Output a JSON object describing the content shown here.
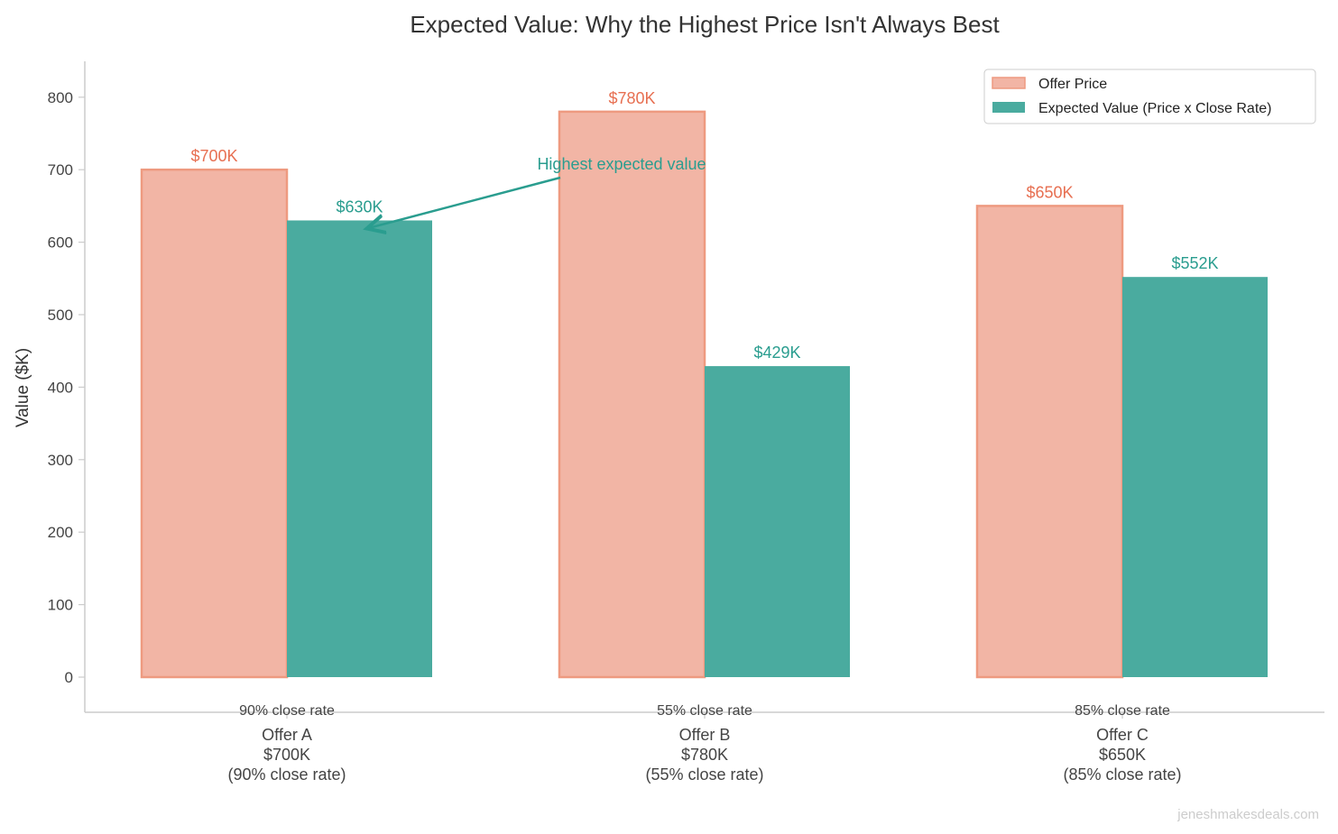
{
  "chart_data": {
    "type": "bar",
    "title": "Expected Value: Why the Highest Price Isn't Always Best",
    "xlabel": "",
    "ylabel": "Value ($K)",
    "ylim": [
      -50,
      850
    ],
    "yticks": [
      0,
      100,
      200,
      300,
      400,
      500,
      600,
      700,
      800
    ],
    "grid": false,
    "legend_position": "top-right",
    "categories": [
      [
        "Offer A",
        "$700K",
        "(90% close rate)"
      ],
      [
        "Offer B",
        "$780K",
        "(55% close rate)"
      ],
      [
        "Offer C",
        "$650K",
        "(85% close rate)"
      ]
    ],
    "close_rate_labels": [
      "90% close rate",
      "55% close rate",
      "85% close rate"
    ],
    "series": [
      {
        "name": "Offer Price",
        "values": [
          700,
          780,
          650
        ],
        "labels": [
          "$700K",
          "$780K",
          "$650K"
        ],
        "color": "#f2b5a5",
        "edge_color": "#ee9a80",
        "label_color": "#e76f51"
      },
      {
        "name": "Expected Value (Price x Close Rate)",
        "values": [
          630,
          429,
          552
        ],
        "labels": [
          "$630K",
          "$429K",
          "$552K"
        ],
        "color": "#4aab9f",
        "label_color": "#2a9d8f"
      }
    ],
    "annotation": {
      "text": "Highest expected value",
      "target_category": 0,
      "target_value": 630,
      "color": "#2a9d8f"
    },
    "watermark": "jeneshmakesdeals.com"
  }
}
